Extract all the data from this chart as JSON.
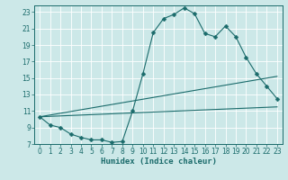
{
  "xlabel": "Humidex (Indice chaleur)",
  "ylabel": "",
  "bg_color": "#cce8e8",
  "line_color": "#1a6b6b",
  "grid_color": "#b0d8d8",
  "xlim": [
    -0.5,
    23.5
  ],
  "ylim": [
    7,
    23.8
  ],
  "yticks": [
    7,
    9,
    11,
    13,
    15,
    17,
    19,
    21,
    23
  ],
  "xticks": [
    0,
    1,
    2,
    3,
    4,
    5,
    6,
    7,
    8,
    9,
    10,
    11,
    12,
    13,
    14,
    15,
    16,
    17,
    18,
    19,
    20,
    21,
    22,
    23
  ],
  "curve1_x": [
    0,
    1,
    2,
    3,
    4,
    5,
    6,
    7,
    8,
    9,
    10,
    11,
    12,
    13,
    14,
    15,
    16,
    17,
    18,
    19,
    20,
    21,
    22,
    23
  ],
  "curve1_y": [
    10.3,
    9.3,
    9.0,
    8.2,
    7.8,
    7.5,
    7.5,
    7.2,
    7.3,
    11.0,
    15.5,
    20.5,
    22.2,
    22.7,
    23.5,
    22.8,
    20.4,
    20.0,
    21.3,
    20.0,
    17.5,
    15.5,
    14.0,
    12.5
  ],
  "line1_x": [
    0,
    23
  ],
  "line1_y": [
    10.3,
    15.2
  ],
  "line2_x": [
    0,
    23
  ],
  "line2_y": [
    10.3,
    11.5
  ],
  "marker_size": 2.5,
  "linewidth": 0.8,
  "tick_fontsize": 5.5,
  "xlabel_fontsize": 6.5
}
